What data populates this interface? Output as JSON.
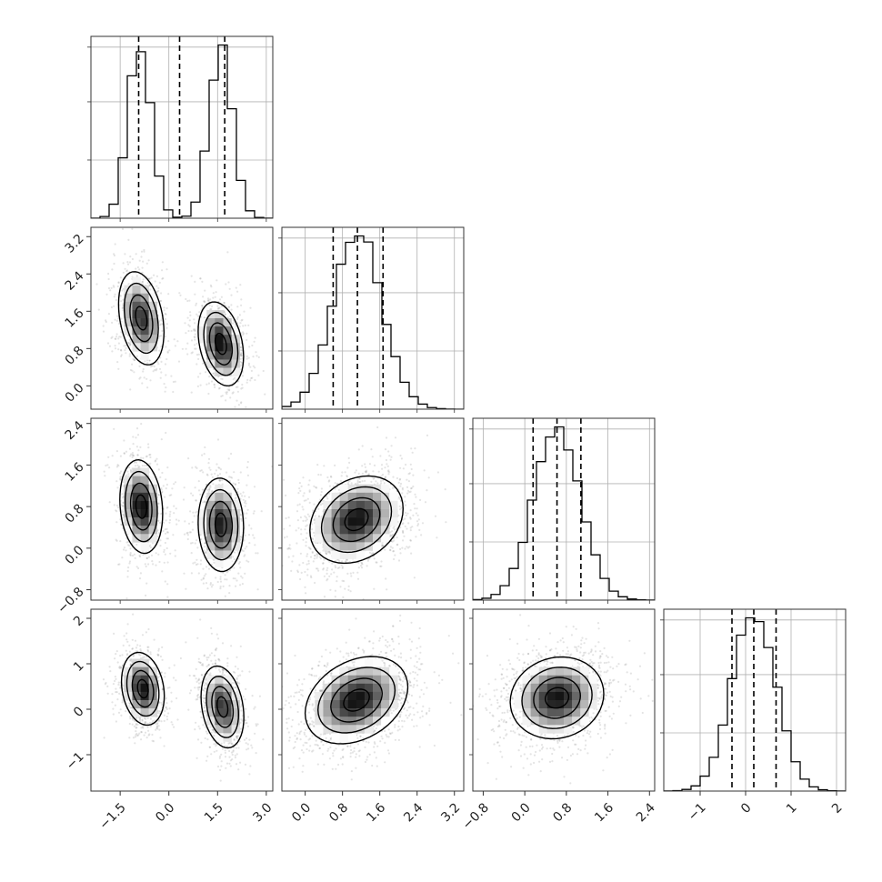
{
  "chart_data": {
    "type": "corner",
    "variables": [
      {
        "index": 0,
        "range": [
          -2.4,
          3.2
        ],
        "ticks": [
          -1.5,
          0.0,
          1.5,
          3.0
        ],
        "tick_labels": [
          "−1.5",
          "0.0",
          "1.5",
          "3.0"
        ],
        "mixture": [
          {
            "w": 0.5,
            "mean": -0.9,
            "sd": 0.35
          },
          {
            "w": 0.5,
            "mean": 1.6,
            "sd": 0.35
          }
        ],
        "quantiles": [
          -0.93,
          0.33,
          1.72
        ]
      },
      {
        "index": 1,
        "range": [
          -0.5,
          3.4
        ],
        "ticks": [
          0.0,
          0.8,
          1.6,
          2.4,
          3.2
        ],
        "tick_labels": [
          "0.0",
          "0.8",
          "1.6",
          "2.4",
          "3.2"
        ],
        "mixture": [
          {
            "w": 1.0,
            "mean": 1.12,
            "sd": 0.52
          }
        ],
        "quantiles": [
          0.6,
          1.12,
          1.67
        ]
      },
      {
        "index": 2,
        "range": [
          -1.0,
          2.5
        ],
        "ticks": [
          -0.8,
          0.0,
          0.8,
          1.6,
          2.4
        ],
        "tick_labels": [
          "−0.8",
          "0.0",
          "0.8",
          "1.6",
          "2.4"
        ],
        "mixture": [
          {
            "w": 1.0,
            "mean": 0.62,
            "sd": 0.45
          }
        ],
        "quantiles": [
          0.16,
          0.62,
          1.08
        ]
      },
      {
        "index": 3,
        "range": [
          -1.8,
          2.2
        ],
        "ticks": [
          -1,
          0,
          1,
          2
        ],
        "tick_labels": [
          "−1",
          "0",
          "1",
          "2"
        ],
        "mixture": [
          {
            "w": 1.0,
            "mean": 0.18,
            "sd": 0.48
          }
        ],
        "quantiles": [
          -0.3,
          0.18,
          0.67
        ]
      }
    ],
    "pairs": [
      {
        "row": 1,
        "col": 0,
        "blobs": [
          {
            "w": 0.5,
            "mx": -0.85,
            "my": 1.45,
            "sx": 0.35,
            "sy": 0.5,
            "rho": -0.3
          },
          {
            "w": 0.5,
            "mx": 1.6,
            "my": 0.9,
            "sx": 0.35,
            "sy": 0.45,
            "rho": -0.3
          }
        ]
      },
      {
        "row": 2,
        "col": 0,
        "blobs": [
          {
            "w": 0.5,
            "mx": -0.85,
            "my": 0.8,
            "sx": 0.33,
            "sy": 0.45,
            "rho": -0.15
          },
          {
            "w": 0.5,
            "mx": 1.6,
            "my": 0.45,
            "sx": 0.35,
            "sy": 0.45,
            "rho": -0.05
          }
        ]
      },
      {
        "row": 2,
        "col": 1,
        "blobs": [
          {
            "w": 1.0,
            "mx": 1.1,
            "my": 0.55,
            "sx": 0.5,
            "sy": 0.42,
            "rho": 0.25
          }
        ]
      },
      {
        "row": 3,
        "col": 0,
        "blobs": [
          {
            "w": 0.5,
            "mx": -0.8,
            "my": 0.45,
            "sx": 0.33,
            "sy": 0.4,
            "rho": -0.2
          },
          {
            "w": 0.5,
            "mx": 1.65,
            "my": 0.05,
            "sx": 0.33,
            "sy": 0.45,
            "rho": -0.25
          }
        ]
      },
      {
        "row": 3,
        "col": 1,
        "blobs": [
          {
            "w": 1.0,
            "mx": 1.1,
            "my": 0.2,
            "sx": 0.55,
            "sy": 0.48,
            "rho": 0.3
          }
        ]
      },
      {
        "row": 3,
        "col": 2,
        "blobs": [
          {
            "w": 1.0,
            "mx": 0.62,
            "my": 0.25,
            "sx": 0.45,
            "sy": 0.45,
            "rho": 0.1
          }
        ]
      }
    ],
    "grid": true,
    "quantile_lines": "dashed",
    "contour_levels": 4,
    "tick_labels_rotated": true
  }
}
